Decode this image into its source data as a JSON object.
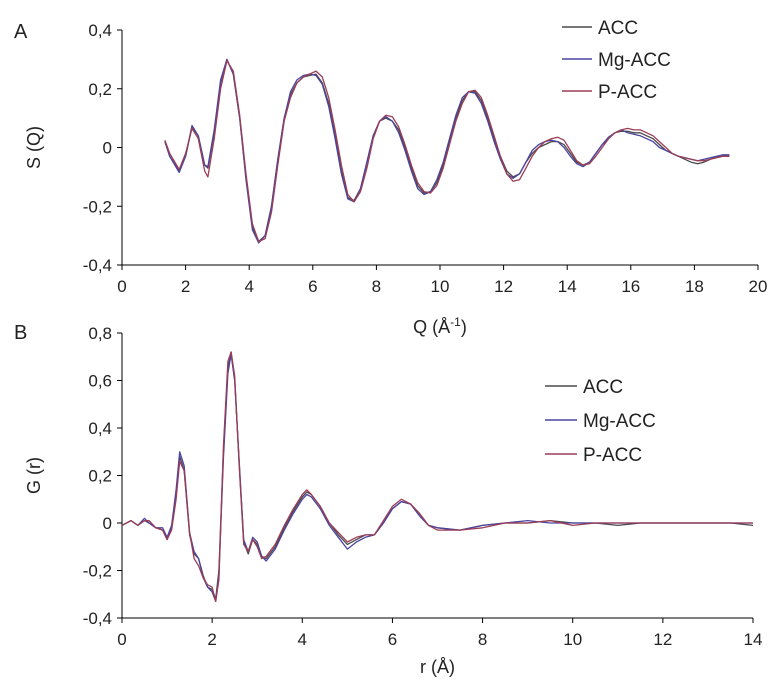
{
  "colors": {
    "ACC": "#4a4a4a",
    "Mg-ACC": "#4b45a0",
    "P-ACC": "#9c3d56",
    "axis": "#000000",
    "text": "#222222"
  },
  "chart_data": [
    {
      "panel_label": "A",
      "type": "line",
      "xlabel": "Q (Å",
      "xlabel_sup": "-1",
      "xlabel_close": ")",
      "ylabel": "S (Q)",
      "xlim": [
        0,
        20
      ],
      "ylim": [
        -0.4,
        0.4
      ],
      "xticks": [
        0,
        2,
        4,
        6,
        8,
        10,
        12,
        14,
        16,
        18,
        20
      ],
      "xtick_labels": [
        "0",
        "2",
        "4",
        "6",
        "8",
        "10",
        "12",
        "14",
        "16",
        "18",
        "20"
      ],
      "yticks": [
        -0.4,
        -0.2,
        0,
        0.2,
        0.4
      ],
      "ytick_labels": [
        "-0,4",
        "-0,2",
        "0",
        "0,2",
        "0,4"
      ],
      "grid": false,
      "legend_position": "top-right",
      "series": [
        {
          "name": "ACC",
          "color_key": "ACC",
          "x": [
            1.35,
            1.5,
            1.8,
            2.0,
            2.2,
            2.4,
            2.6,
            2.7,
            2.9,
            3.1,
            3.3,
            3.5,
            3.7,
            3.9,
            4.1,
            4.3,
            4.5,
            4.7,
            4.9,
            5.1,
            5.3,
            5.5,
            5.7,
            5.9,
            6.1,
            6.3,
            6.5,
            6.7,
            6.9,
            7.1,
            7.3,
            7.5,
            7.7,
            7.9,
            8.1,
            8.3,
            8.5,
            8.7,
            8.9,
            9.1,
            9.3,
            9.5,
            9.7,
            9.9,
            10.1,
            10.3,
            10.5,
            10.7,
            10.9,
            11.1,
            11.3,
            11.5,
            11.7,
            11.9,
            12.1,
            12.3,
            12.5,
            12.7,
            12.9,
            13.1,
            13.3,
            13.5,
            13.7,
            13.9,
            14.1,
            14.3,
            14.5,
            14.7,
            14.9,
            15.1,
            15.3,
            15.5,
            15.7,
            15.9,
            16.1,
            16.3,
            16.5,
            16.7,
            16.9,
            17.1,
            17.3,
            17.5,
            17.7,
            17.9,
            18.1,
            18.3,
            18.5,
            18.7,
            18.9,
            19.1
          ],
          "y": [
            0.02,
            -0.03,
            -0.08,
            -0.03,
            0.07,
            0.04,
            -0.06,
            -0.07,
            0.05,
            0.22,
            0.3,
            0.25,
            0.1,
            -0.1,
            -0.27,
            -0.32,
            -0.3,
            -0.2,
            -0.04,
            0.1,
            0.18,
            0.22,
            0.24,
            0.245,
            0.25,
            0.22,
            0.15,
            0.04,
            -0.08,
            -0.17,
            -0.18,
            -0.14,
            -0.05,
            0.04,
            0.09,
            0.1,
            0.09,
            0.06,
            0.0,
            -0.07,
            -0.13,
            -0.155,
            -0.15,
            -0.12,
            -0.06,
            0.02,
            0.1,
            0.16,
            0.19,
            0.19,
            0.16,
            0.1,
            0.03,
            -0.03,
            -0.08,
            -0.1,
            -0.09,
            -0.05,
            -0.02,
            0.0,
            0.01,
            0.02,
            0.02,
            0.01,
            -0.02,
            -0.05,
            -0.06,
            -0.05,
            -0.02,
            0.01,
            0.03,
            0.05,
            0.055,
            0.055,
            0.05,
            0.05,
            0.04,
            0.03,
            0.01,
            -0.01,
            -0.02,
            -0.03,
            -0.04,
            -0.05,
            -0.055,
            -0.05,
            -0.04,
            -0.03,
            -0.03,
            -0.03
          ]
        },
        {
          "name": "Mg-ACC",
          "color_key": "Mg-ACC",
          "x": [
            1.35,
            1.5,
            1.8,
            2.0,
            2.2,
            2.4,
            2.6,
            2.7,
            2.9,
            3.1,
            3.3,
            3.5,
            3.7,
            3.9,
            4.1,
            4.3,
            4.5,
            4.7,
            4.9,
            5.1,
            5.3,
            5.5,
            5.7,
            5.9,
            6.1,
            6.3,
            6.5,
            6.7,
            6.9,
            7.1,
            7.3,
            7.5,
            7.7,
            7.9,
            8.1,
            8.3,
            8.5,
            8.7,
            8.9,
            9.1,
            9.3,
            9.5,
            9.7,
            9.9,
            10.1,
            10.3,
            10.5,
            10.7,
            10.9,
            11.1,
            11.3,
            11.5,
            11.7,
            11.9,
            12.1,
            12.3,
            12.5,
            12.7,
            12.9,
            13.1,
            13.3,
            13.5,
            13.7,
            13.9,
            14.1,
            14.3,
            14.5,
            14.7,
            14.9,
            15.1,
            15.3,
            15.5,
            15.7,
            15.9,
            16.1,
            16.3,
            16.5,
            16.7,
            16.9,
            17.1,
            17.3,
            17.5,
            17.7,
            17.9,
            18.1,
            18.3,
            18.5,
            18.7,
            18.9,
            19.1
          ],
          "y": [
            0.02,
            -0.03,
            -0.085,
            -0.03,
            0.075,
            0.04,
            -0.06,
            -0.065,
            0.06,
            0.23,
            0.3,
            0.25,
            0.1,
            -0.11,
            -0.28,
            -0.325,
            -0.3,
            -0.2,
            -0.04,
            0.1,
            0.19,
            0.23,
            0.245,
            0.25,
            0.245,
            0.215,
            0.14,
            0.03,
            -0.09,
            -0.175,
            -0.185,
            -0.14,
            -0.05,
            0.04,
            0.09,
            0.105,
            0.09,
            0.05,
            -0.01,
            -0.08,
            -0.14,
            -0.16,
            -0.15,
            -0.11,
            -0.05,
            0.03,
            0.11,
            0.17,
            0.19,
            0.185,
            0.15,
            0.09,
            0.02,
            -0.04,
            -0.09,
            -0.105,
            -0.09,
            -0.05,
            -0.01,
            0.01,
            0.02,
            0.025,
            0.02,
            0.0,
            -0.03,
            -0.055,
            -0.065,
            -0.05,
            -0.02,
            0.01,
            0.035,
            0.05,
            0.06,
            0.05,
            0.045,
            0.04,
            0.03,
            0.02,
            0.0,
            -0.01,
            -0.02,
            -0.03,
            -0.035,
            -0.04,
            -0.045,
            -0.04,
            -0.035,
            -0.03,
            -0.025,
            -0.025
          ]
        },
        {
          "name": "P-ACC",
          "color_key": "P-ACC",
          "x": [
            1.35,
            1.5,
            1.8,
            2.0,
            2.2,
            2.4,
            2.6,
            2.7,
            2.9,
            3.1,
            3.3,
            3.5,
            3.7,
            3.9,
            4.1,
            4.3,
            4.5,
            4.7,
            4.9,
            5.1,
            5.3,
            5.5,
            5.7,
            5.9,
            6.1,
            6.3,
            6.5,
            6.7,
            6.9,
            7.1,
            7.3,
            7.5,
            7.7,
            7.9,
            8.1,
            8.3,
            8.5,
            8.7,
            8.9,
            9.1,
            9.3,
            9.5,
            9.7,
            9.9,
            10.1,
            10.3,
            10.5,
            10.7,
            10.9,
            11.1,
            11.3,
            11.5,
            11.7,
            11.9,
            12.1,
            12.3,
            12.5,
            12.7,
            12.9,
            13.1,
            13.3,
            13.5,
            13.7,
            13.9,
            14.1,
            14.3,
            14.5,
            14.7,
            14.9,
            15.1,
            15.3,
            15.5,
            15.7,
            15.9,
            16.1,
            16.3,
            16.5,
            16.7,
            16.9,
            17.1,
            17.3,
            17.5,
            17.7,
            17.9,
            18.1,
            18.3,
            18.5,
            18.7,
            18.9,
            19.1
          ],
          "y": [
            0.025,
            -0.02,
            -0.075,
            -0.02,
            0.065,
            0.03,
            -0.08,
            -0.1,
            0.03,
            0.2,
            0.295,
            0.26,
            0.11,
            -0.09,
            -0.26,
            -0.32,
            -0.31,
            -0.22,
            -0.06,
            0.09,
            0.17,
            0.22,
            0.24,
            0.25,
            0.26,
            0.24,
            0.17,
            0.06,
            -0.06,
            -0.16,
            -0.185,
            -0.15,
            -0.07,
            0.03,
            0.09,
            0.11,
            0.105,
            0.07,
            0.01,
            -0.06,
            -0.12,
            -0.15,
            -0.155,
            -0.13,
            -0.07,
            0.01,
            0.09,
            0.15,
            0.19,
            0.195,
            0.17,
            0.11,
            0.04,
            -0.03,
            -0.09,
            -0.115,
            -0.11,
            -0.07,
            -0.03,
            0.0,
            0.02,
            0.03,
            0.035,
            0.025,
            -0.01,
            -0.045,
            -0.06,
            -0.055,
            -0.03,
            0.0,
            0.03,
            0.05,
            0.06,
            0.065,
            0.06,
            0.06,
            0.05,
            0.04,
            0.02,
            0.0,
            -0.02,
            -0.03,
            -0.035,
            -0.04,
            -0.045,
            -0.045,
            -0.04,
            -0.035,
            -0.03,
            -0.03
          ]
        }
      ]
    },
    {
      "panel_label": "B",
      "type": "line",
      "xlabel": "r (Å)",
      "ylabel": "G (r)",
      "xlim": [
        0,
        14
      ],
      "ylim": [
        -0.4,
        0.8
      ],
      "xticks": [
        0,
        2,
        4,
        6,
        8,
        10,
        12,
        14
      ],
      "xtick_labels": [
        "0",
        "2",
        "4",
        "6",
        "8",
        "10",
        "12",
        "14"
      ],
      "yticks": [
        -0.4,
        -0.2,
        0,
        0.2,
        0.4,
        0.6,
        0.8
      ],
      "ytick_labels": [
        "-0,4",
        "-0,2",
        "0",
        "0,2",
        "0,4",
        "0,6",
        "0,8"
      ],
      "grid": false,
      "legend_position": "center-right",
      "series": [
        {
          "name": "ACC",
          "color_key": "ACC",
          "x": [
            0,
            0.2,
            0.35,
            0.5,
            0.6,
            0.75,
            0.9,
            1.0,
            1.1,
            1.2,
            1.28,
            1.38,
            1.5,
            1.6,
            1.7,
            1.8,
            1.9,
            2.0,
            2.08,
            2.15,
            2.25,
            2.35,
            2.42,
            2.5,
            2.6,
            2.7,
            2.8,
            2.9,
            3.0,
            3.1,
            3.2,
            3.4,
            3.6,
            3.8,
            4.0,
            4.1,
            4.2,
            4.4,
            4.6,
            4.8,
            5.0,
            5.2,
            5.4,
            5.6,
            5.8,
            6.0,
            6.2,
            6.4,
            6.6,
            6.8,
            7.0,
            7.5,
            8.0,
            8.5,
            9.0,
            9.5,
            10.0,
            10.5,
            11.0,
            11.5,
            12.0,
            12.5,
            13.0,
            13.5,
            14.0
          ],
          "y": [
            -0.01,
            0.01,
            -0.01,
            0.01,
            0.0,
            -0.02,
            -0.03,
            -0.07,
            -0.02,
            0.12,
            0.28,
            0.22,
            -0.05,
            -0.13,
            -0.15,
            -0.22,
            -0.27,
            -0.28,
            -0.32,
            -0.2,
            0.3,
            0.65,
            0.72,
            0.6,
            0.25,
            -0.08,
            -0.13,
            -0.07,
            -0.09,
            -0.14,
            -0.15,
            -0.1,
            -0.02,
            0.05,
            0.11,
            0.13,
            0.12,
            0.07,
            0.0,
            -0.05,
            -0.09,
            -0.07,
            -0.05,
            -0.05,
            0.0,
            0.06,
            0.09,
            0.08,
            0.04,
            -0.01,
            -0.02,
            -0.03,
            -0.01,
            0.0,
            0.0,
            0.01,
            0.0,
            0.0,
            -0.01,
            0.0,
            0.0,
            0.0,
            0.0,
            0.0,
            -0.01
          ]
        },
        {
          "name": "Mg-ACC",
          "color_key": "Mg-ACC",
          "x": [
            0,
            0.2,
            0.35,
            0.5,
            0.6,
            0.75,
            0.9,
            1.0,
            1.1,
            1.2,
            1.28,
            1.38,
            1.5,
            1.6,
            1.7,
            1.8,
            1.9,
            2.0,
            2.08,
            2.15,
            2.25,
            2.35,
            2.42,
            2.5,
            2.6,
            2.7,
            2.8,
            2.9,
            3.0,
            3.1,
            3.2,
            3.4,
            3.6,
            3.8,
            4.0,
            4.1,
            4.2,
            4.4,
            4.6,
            4.8,
            5.0,
            5.2,
            5.4,
            5.6,
            5.8,
            6.0,
            6.2,
            6.4,
            6.6,
            6.8,
            7.0,
            7.5,
            8.0,
            8.5,
            9.0,
            9.5,
            10.0,
            10.5,
            11.0,
            11.5,
            12.0,
            12.5,
            13.0,
            13.5,
            14.0
          ],
          "y": [
            -0.01,
            0.01,
            -0.01,
            0.02,
            0.0,
            -0.02,
            -0.02,
            -0.06,
            -0.01,
            0.14,
            0.3,
            0.24,
            -0.04,
            -0.12,
            -0.15,
            -0.23,
            -0.27,
            -0.29,
            -0.33,
            -0.22,
            0.27,
            0.63,
            0.71,
            0.6,
            0.26,
            -0.07,
            -0.12,
            -0.06,
            -0.08,
            -0.14,
            -0.16,
            -0.11,
            -0.03,
            0.04,
            0.1,
            0.12,
            0.11,
            0.06,
            -0.01,
            -0.06,
            -0.11,
            -0.08,
            -0.06,
            -0.05,
            0.0,
            0.06,
            0.09,
            0.08,
            0.03,
            -0.01,
            -0.02,
            -0.03,
            -0.01,
            0.0,
            0.01,
            0.0,
            0.0,
            0.0,
            0.0,
            0.0,
            0.0,
            0.0,
            0.0,
            0.0,
            0.0
          ]
        },
        {
          "name": "P-ACC",
          "color_key": "P-ACC",
          "x": [
            0,
            0.2,
            0.35,
            0.5,
            0.6,
            0.75,
            0.9,
            1.0,
            1.1,
            1.2,
            1.28,
            1.38,
            1.5,
            1.6,
            1.7,
            1.8,
            1.9,
            2.0,
            2.08,
            2.15,
            2.25,
            2.35,
            2.42,
            2.5,
            2.6,
            2.7,
            2.8,
            2.9,
            3.0,
            3.1,
            3.2,
            3.4,
            3.6,
            3.8,
            4.0,
            4.1,
            4.2,
            4.4,
            4.6,
            4.8,
            5.0,
            5.2,
            5.4,
            5.6,
            5.8,
            6.0,
            6.2,
            6.4,
            6.6,
            6.8,
            7.0,
            7.5,
            8.0,
            8.5,
            9.0,
            9.5,
            10.0,
            10.5,
            11.0,
            11.5,
            12.0,
            12.5,
            13.0,
            13.5,
            14.0
          ],
          "y": [
            -0.01,
            0.01,
            -0.01,
            0.01,
            0.01,
            -0.02,
            -0.03,
            -0.07,
            -0.03,
            0.1,
            0.26,
            0.22,
            -0.04,
            -0.15,
            -0.18,
            -0.23,
            -0.26,
            -0.27,
            -0.33,
            -0.24,
            0.32,
            0.68,
            0.72,
            0.62,
            0.24,
            -0.09,
            -0.12,
            -0.07,
            -0.1,
            -0.15,
            -0.14,
            -0.09,
            -0.01,
            0.06,
            0.12,
            0.14,
            0.12,
            0.07,
            0.0,
            -0.04,
            -0.08,
            -0.06,
            -0.05,
            -0.05,
            0.01,
            0.07,
            0.1,
            0.08,
            0.04,
            -0.01,
            -0.03,
            -0.03,
            -0.02,
            0.0,
            0.0,
            0.01,
            -0.01,
            0.0,
            0.0,
            0.0,
            0.0,
            0.0,
            0.0,
            0.0,
            0.0
          ]
        }
      ]
    }
  ]
}
